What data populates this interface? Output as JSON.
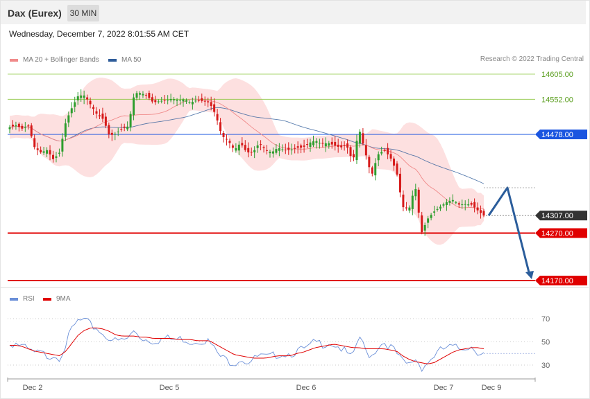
{
  "header": {
    "title": "Dax (Eurex)",
    "timeframe": "30 MIN"
  },
  "timestamp": "Wednesday, December 7, 2022 8:01:55 AM CET",
  "legend": {
    "ma20": {
      "label": "MA 20 + Bollinger Bands",
      "color": "#f08a8a"
    },
    "ma50": {
      "label": "MA 50",
      "color": "#2f5d9a"
    },
    "copyright": "Research © 2022 Trading Central"
  },
  "rsi_legend": {
    "rsi": {
      "label": "RSI",
      "color": "#6a8fd8"
    },
    "ma9": {
      "label": "9MA",
      "color": "#e00000"
    }
  },
  "colors": {
    "up": "#2e9e2e",
    "down": "#d61a1a",
    "band": "#fde0e0",
    "projection": "#2b5d9b"
  },
  "chart_data": [
    {
      "type": "candlestick",
      "title": "Dax (Eurex) 30 MIN",
      "ylim": [
        14130,
        14680
      ],
      "x_labels": [
        "Dec 2",
        "Dec 5",
        "Dec 6",
        "Dec 7",
        "Dec 9"
      ],
      "levels": [
        {
          "value": 14605.0,
          "label": "14605.00",
          "style": "resistance",
          "color": "#8cc63f"
        },
        {
          "value": 14552.0,
          "label": "14552.00",
          "style": "resistance",
          "color": "#8cc63f"
        },
        {
          "value": 14478.0,
          "label": "14478.00",
          "style": "pivot",
          "color": "#1a55e0"
        },
        {
          "value": 14307.0,
          "label": "14307.00",
          "style": "last",
          "color": "#333333"
        },
        {
          "value": 14270.0,
          "label": "14270.00",
          "style": "support",
          "color": "#e00000"
        },
        {
          "value": 14170.0,
          "label": "14170.00",
          "style": "support",
          "color": "#e00000"
        }
      ],
      "close_anchors": [
        14493,
        14497,
        14490,
        14496,
        14450,
        14440,
        14445,
        14425,
        14440,
        14505,
        14535,
        14560,
        14560,
        14540,
        14520,
        14510,
        14475,
        14480,
        14490,
        14495,
        14565,
        14565,
        14560,
        14545,
        14548,
        14550,
        14553,
        14550,
        14552,
        14545,
        14550,
        14548,
        14545,
        14520,
        14475,
        14465,
        14445,
        14460,
        14440,
        14440,
        14460,
        14445,
        14440,
        14450,
        14445,
        14445,
        14450,
        14450,
        14460,
        14465,
        14458,
        14460,
        14455,
        14450,
        14455,
        14420,
        14490,
        14440,
        14390,
        14435,
        14445,
        14430,
        14400,
        14325,
        14320,
        14370,
        14270,
        14300,
        14315,
        14325,
        14335,
        14340,
        14330,
        14331,
        14330,
        14318,
        14307
      ],
      "projection": [
        {
          "label": "last",
          "value": 14307
        },
        {
          "label": "target-1",
          "value": 14370
        },
        {
          "label": "target-2",
          "value": 14170
        }
      ]
    },
    {
      "type": "line",
      "title": "RSI",
      "ylim": [
        18,
        78
      ],
      "y_ticks": [
        70,
        50,
        30
      ],
      "rsi_anchors": [
        48,
        49,
        46,
        42,
        40,
        40,
        38,
        39,
        37,
        48,
        61,
        68,
        68,
        64,
        62,
        56,
        54,
        50,
        51,
        53,
        60,
        54,
        52,
        51,
        52,
        53,
        52,
        52,
        53,
        50,
        51,
        52,
        50,
        42,
        36,
        34,
        32,
        36,
        33,
        34,
        38,
        36,
        37,
        40,
        40,
        40,
        42,
        43,
        45,
        50,
        48,
        50,
        48,
        45,
        40,
        35,
        56,
        42,
        38,
        46,
        50,
        46,
        40,
        32,
        30,
        36,
        28,
        32,
        38,
        42,
        45,
        45,
        44,
        46,
        46,
        42,
        40
      ],
      "ma9_anchors": [
        47,
        47,
        46,
        44,
        42,
        41,
        40,
        39,
        38,
        42,
        49,
        56,
        60,
        62,
        62,
        61,
        59,
        56,
        55,
        55,
        55,
        54,
        54,
        53,
        53,
        53,
        53,
        52,
        52,
        52,
        51,
        51,
        51,
        48,
        45,
        42,
        39,
        38,
        37,
        36,
        36,
        36,
        37,
        38,
        38,
        38,
        40,
        41,
        43,
        45,
        46,
        47,
        48,
        47,
        46,
        45,
        45,
        44,
        44,
        44,
        44,
        43,
        42,
        38,
        35,
        33,
        32,
        31,
        32,
        35,
        38,
        41,
        43,
        44,
        45,
        45,
        44
      ],
      "reference_level": 40
    }
  ]
}
